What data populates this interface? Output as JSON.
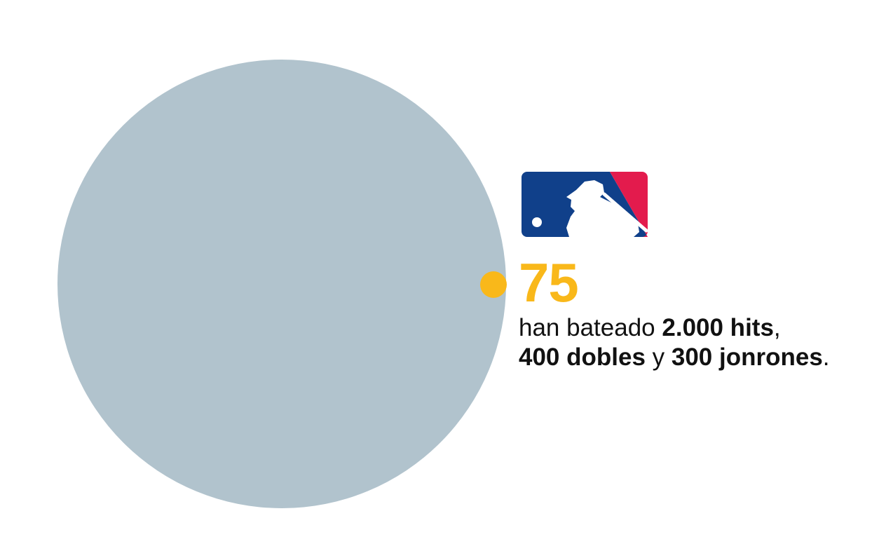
{
  "colors": {
    "circle": "#b1c3cd",
    "accent": "#f9b81a",
    "logo_blue": "#10408a",
    "logo_red": "#e31b4d",
    "text": "#111111"
  },
  "logo": {
    "name": "mlb-logo"
  },
  "stat": {
    "value": "75"
  },
  "caption": {
    "part1": "han bateado ",
    "hits": "2.000 hits",
    "comma": ",",
    "doubles": "400 dobles",
    "and": " y ",
    "homers": "300 jonrones",
    "period": "."
  }
}
